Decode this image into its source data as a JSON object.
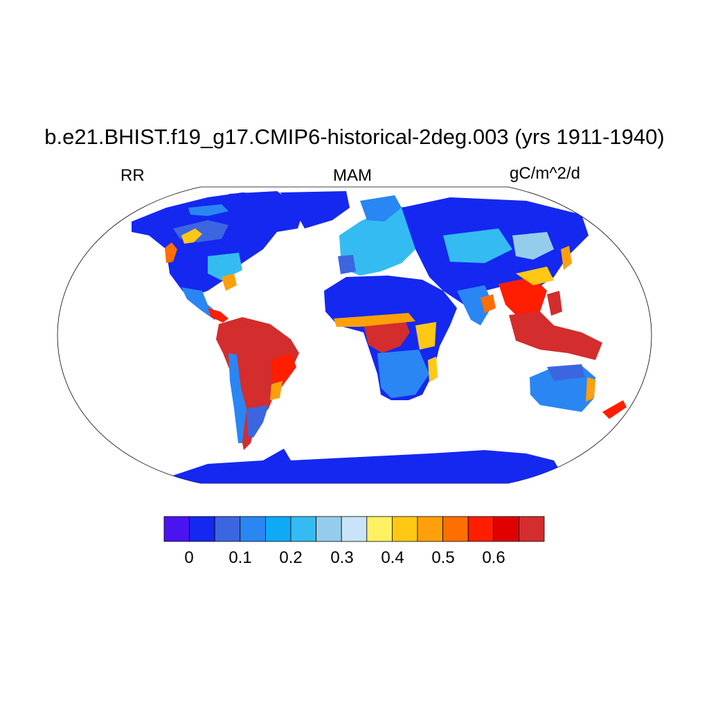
{
  "title": "b.e21.BHIST.f19_g17.CMIP6-historical-2deg.003 (yrs 1911-1940)",
  "subtitle_left": "RR",
  "subtitle_center": "MAM",
  "subtitle_right": "gC/m^2/d",
  "colorbar": {
    "colors": [
      "#4a14f0",
      "#1428f0",
      "#3c66e0",
      "#2a86f2",
      "#0eaaf6",
      "#34bcf2",
      "#94cdec",
      "#c8e4f6",
      "#fff064",
      "#ffc814",
      "#ffa00a",
      "#ff6e00",
      "#ff1e00",
      "#e10000",
      "#d32d2d"
    ],
    "tick_labels": [
      "0",
      "0.1",
      "0.2",
      "0.3",
      "0.4",
      "0.5",
      "0.6"
    ]
  },
  "map_data": {
    "variable": "RR",
    "season": "MAM",
    "units": "gC/m^2/d",
    "projection": "Robinson",
    "regions": [
      {
        "name": "Amazon basin",
        "level": "0.6+"
      },
      {
        "name": "Central Africa",
        "level": "0.6+"
      },
      {
        "name": "Maritime Continent",
        "level": "0.6+"
      },
      {
        "name": "Southeast Asia",
        "level": "0.4-0.6"
      },
      {
        "name": "Sahara",
        "level": "0"
      },
      {
        "name": "Siberia",
        "level": "0"
      },
      {
        "name": "Antarctica",
        "level": "0"
      },
      {
        "name": "Greenland",
        "level": "no data"
      },
      {
        "name": "Australia interior",
        "level": "0.1-0.2"
      }
    ]
  }
}
